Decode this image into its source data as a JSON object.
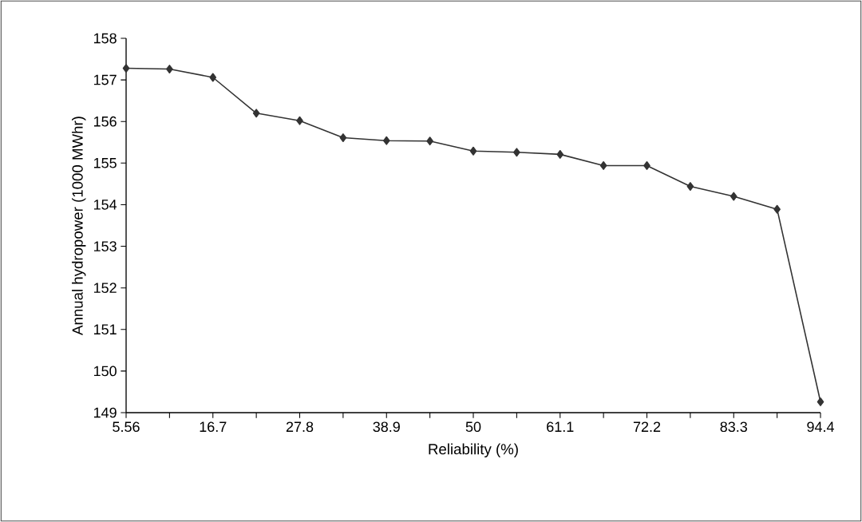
{
  "chart_data": {
    "type": "line",
    "xlabel": "Reliability (%)",
    "ylabel": "Annual hydropower (1000 MWhr)",
    "categories": [
      "5.56",
      null,
      "16.7",
      null,
      "27.8",
      null,
      "38.9",
      null,
      "50",
      null,
      "61.1",
      null,
      "72.2",
      null,
      "83.3",
      null,
      "94.4"
    ],
    "series": [
      {
        "color": "#333333",
        "values": [
          157.28,
          157.26,
          157.06,
          156.2,
          156.02,
          155.61,
          155.54,
          155.53,
          155.29,
          155.26,
          155.21,
          154.94,
          154.94,
          154.44,
          154.2,
          153.89,
          149.26
        ]
      }
    ],
    "ylim": [
      149,
      158
    ],
    "yticks": [
      149,
      150,
      151,
      152,
      153,
      154,
      155,
      156,
      157,
      158
    ],
    "marker": "diamond",
    "line_style": "solid",
    "grid": false,
    "legend": false
  }
}
